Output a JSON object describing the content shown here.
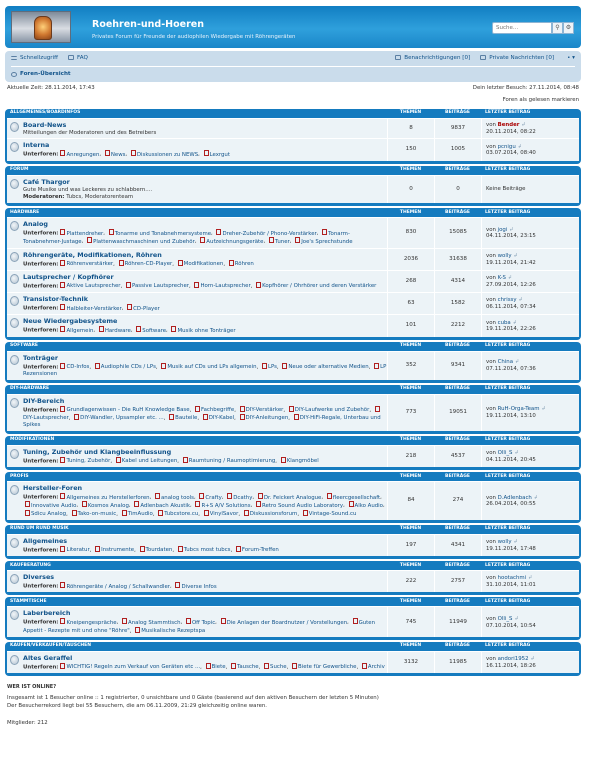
{
  "header": {
    "title": "Roehren-und-Hoeren",
    "description": "Privates Forum für Freunde der audiophilen Wiedergabe mit Röhrengeräten",
    "search_placeholder": "Suche…",
    "search_icon": "magnifier-icon",
    "advanced_icon": "gear-icon"
  },
  "nav": {
    "quicklinks": "Schnellzugriff",
    "faq": "FAQ",
    "notifications": "Benachrichtigungen [0]",
    "messages": "Private Nachrichten [0]",
    "user": "•",
    "index": "Foren-Übersicht"
  },
  "info": {
    "current_time": "Aktuelle Zeit: 28.11.2014, 17:43",
    "last_visit": "Dein letzter Besuch: 27.11.2014, 08:48",
    "mark_read": "Foren als gelesen markieren"
  },
  "columns": {
    "topics": "THEMEN",
    "posts": "BEITRÄGE",
    "last_post": "LETZTER BEITRAG"
  },
  "categories": [
    {
      "name": "ALLGEMEINES/BOARDINFOS",
      "forums": [
        {
          "title": "Board-News",
          "desc": "Mitteilungen der Moderatoren und des Betreibers",
          "sub_label": "",
          "subs": [],
          "topics": "8",
          "posts": "9837",
          "lp_by": "Bender",
          "lp_date": "20.11.2014, 08:22",
          "lp_red": true
        },
        {
          "title": "Interna",
          "desc": "",
          "sub_label": "Unterforen:",
          "subs": [
            "Anregungen",
            "News",
            "Diskussionen zu NEWS",
            "Lexrgut"
          ],
          "topics": "150",
          "posts": "1005",
          "lp_by": "pcnigu",
          "lp_date": "03.07.2014, 08:40"
        }
      ]
    },
    {
      "name": "FORUM",
      "forums": [
        {
          "title": "Café Thargor",
          "desc": "Gute Musike und was Leckeres zu schlabbern....",
          "sub_label": "Moderatoren:",
          "subs": [],
          "mods": "Tubcs, Moderatorenteam",
          "topics": "0",
          "posts": "0",
          "lp_none": "Keine Beiträge"
        }
      ]
    },
    {
      "name": "HARDWARE",
      "forums": [
        {
          "title": "Analog",
          "desc": "",
          "sub_label": "Unterforen:",
          "subs": [
            "Plattendreher",
            "Tonarme und Tonabnehmersysteme",
            "Dreher-Zubehör / Phono-Verstärker",
            "Tonarm- Tonabnehmer-Justage",
            "Plattenwaschmaschinen und Zubehör",
            "Aufzeichnungsgeräte",
            "Tuner",
            "Joe's Sprechstunde"
          ],
          "topics": "830",
          "posts": "15085",
          "lp_by": "jogi",
          "lp_date": "04.11.2014, 23:15"
        },
        {
          "title": "Röhrengeräte, Modifikationen, Röhren",
          "desc": "",
          "sub_label": "Unterforen:",
          "subs": [
            "Röhrenverstärker",
            "Röhren-CD-Player",
            "Modifikationen",
            "Röhren"
          ],
          "topics": "2036",
          "posts": "31638",
          "lp_by": "wolly",
          "lp_date": "19.11.2014, 21:42"
        },
        {
          "title": "Lautsprecher / Kopfhörer",
          "desc": "",
          "sub_label": "Unterforen:",
          "subs": [
            "Aktive Lautsprecher",
            "Passive Lautsprecher",
            "Horn-Lautsprecher",
            "Kopfhörer / Ohrhörer und deren Verstärker"
          ],
          "topics": "268",
          "posts": "4314",
          "lp_by": "K-S",
          "lp_date": "27.09.2014, 12:26"
        },
        {
          "title": "Transistor-Technik",
          "desc": "",
          "sub_label": "Unterforen:",
          "subs": [
            "Halbleiter-Verstärker",
            "CD-Player"
          ],
          "topics": "63",
          "posts": "1582",
          "lp_by": "chrissy",
          "lp_date": "06.11.2014, 07:34"
        },
        {
          "title": "Neue Wiedergabesysteme",
          "desc": "",
          "sub_label": "Unterforen:",
          "subs": [
            "Allgemein",
            "Hardware",
            "Software",
            "Musik ohne Tonträger"
          ],
          "topics": "101",
          "posts": "2212",
          "lp_by": "cuba",
          "lp_date": "19.11.2014, 22:26"
        }
      ]
    },
    {
      "name": "SOFTWARE",
      "forums": [
        {
          "title": "Tonträger",
          "desc": "",
          "sub_label": "Unterforen:",
          "subs": [
            "CD-Infos",
            "Audiophile CDs / LPs",
            "Musik auf CDs und LPs allgemein",
            "LPs",
            "Neue oder alternative Medien",
            "LP Rezensionen"
          ],
          "topics": "352",
          "posts": "9341",
          "lp_by": "China",
          "lp_date": "07.11.2014, 07:36"
        }
      ]
    },
    {
      "name": "DIY-HARDWARE",
      "forums": [
        {
          "title": "DIY-Bereich",
          "desc": "",
          "sub_label": "Unterforen:",
          "subs": [
            "Grundlagenwissen - Die RuH Knowledge Base",
            "Fachbegriffe",
            "DIY-Verstärker",
            "DIY-Laufwerke und Zubehör",
            "DIY-Lautsprecher",
            "DIY-Wandler, Upsampler etc. ...",
            "Bauteile",
            "DIY-Kabel",
            "DIY-Anleitungen",
            "DIY-HiFi-Regale, Unterbau und Spikes"
          ],
          "topics": "773",
          "posts": "19051",
          "lp_by": "RuH-Orga-Team",
          "lp_date": "19.11.2014, 13:10"
        }
      ]
    },
    {
      "name": "MODIFIKATIONEN",
      "forums": [
        {
          "title": "Tuning, Zubehör und Klangbeeinflussung",
          "desc": "",
          "sub_label": "Unterforen:",
          "subs": [
            "Tuning, Zubehör",
            "Kabel und Leitungen",
            "Raumtuning / Raumoptimierung",
            "Klangmöbel"
          ],
          "topics": "218",
          "posts": "4537",
          "lp_by": "Olli_S",
          "lp_date": "04.11.2014, 20:45"
        }
      ]
    },
    {
      "name": "PROFIS",
      "forums": [
        {
          "title": "Hersteller-Foren",
          "desc": "",
          "sub_label": "Unterforen:",
          "subs": [
            "Allgemeines zu Herstellerforen",
            "analog tools",
            "Crafty",
            "Dcathy",
            "Dr. Feickert Analogue",
            "fleercgesellschaft",
            "Innovative Audio",
            "Kosmos Analog",
            "Adlenbach Akustik",
            "R+S A/V Solutions",
            "Retro Sound Audio Laboratory",
            "Alko Audio",
            "Sdicu Analog",
            "Tako-on-music",
            "TimAudio",
            "Tubcstore.cu",
            "VinylSavor",
            "Diskussionsforum",
            "Vintage-Sound.cu"
          ],
          "topics": "84",
          "posts": "274",
          "lp_by": "D.Adlenbach",
          "lp_date": "26.04.2014, 00:55"
        }
      ]
    },
    {
      "name": "RUND UM RUND MUSIK",
      "forums": [
        {
          "title": "Allgemeines",
          "desc": "",
          "sub_label": "Unterforen:",
          "subs": [
            "Literatur",
            "Instrumente",
            "Tourdaten",
            "Tubcs most tubcs",
            "Forum-Treffen"
          ],
          "topics": "197",
          "posts": "4341",
          "lp_by": "wolly",
          "lp_date": "19.11.2014, 17:48"
        }
      ]
    },
    {
      "name": "KAUFBERATUNG",
      "forums": [
        {
          "title": "Diverses",
          "desc": "",
          "sub_label": "Unterforen:",
          "subs": [
            "Röhrengeräte / Analog / Schallwandler",
            "Diverse Infos"
          ],
          "topics": "222",
          "posts": "2757",
          "lp_by": "hootachmi",
          "lp_date": "31.10.2014, 11:01"
        }
      ]
    },
    {
      "name": "STAMMTISCHE",
      "forums": [
        {
          "title": "Laberbereich",
          "desc": "",
          "sub_label": "Unterforen:",
          "subs": [
            "Kneipengespräche",
            "Analog Stammtisch",
            "Off Topic",
            "Die Anlagen der Boardnutzer / Vorstellungen",
            "Guten Appetit - Rezepte mit und ohne \"Röhre\"",
            "Musikalische Rezeptspa"
          ],
          "topics": "745",
          "posts": "11949",
          "lp_by": "Olli_S",
          "lp_date": "07.10.2014, 10:54"
        }
      ]
    },
    {
      "name": "KAUFEN/VERKAUFEN/TAUSCHEN",
      "forums": [
        {
          "title": "Altes Geraffel",
          "desc": "",
          "sub_label": "Unterforen:",
          "subs": [
            "WICHTIG! Regeln zum Verkauf von Geräten etc ...",
            "Biete",
            "Tausche",
            "Suche",
            "Biete für Gewerbliche",
            "Archiv"
          ],
          "topics": "3132",
          "posts": "11985",
          "lp_by": "andori1952",
          "lp_date": "16.11.2014, 18:26"
        }
      ]
    }
  ],
  "whos_online": {
    "title": "WER IST ONLINE?",
    "line1": "Insgesamt ist 1 Besucher online :: 1 registrierter, 0 unsichtbare und 0 Gäste (basierend auf den aktiven Besuchern der letzten 5 Minuten)",
    "line2": "Der Besucherrekord liegt bei 55 Besuchern, die am 06.11.2009, 21:29 gleichzeitig online waren."
  },
  "footer_cut": "Mitglieder: 212"
}
